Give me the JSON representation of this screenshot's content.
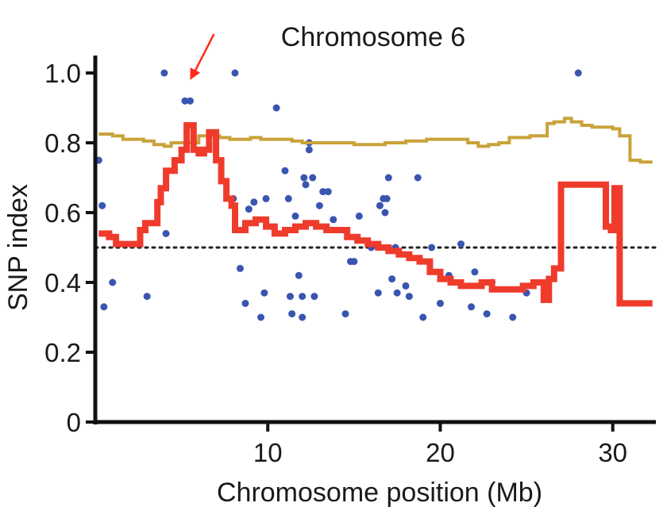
{
  "chart_data": {
    "type": "scatter",
    "title": "Chromosome 6",
    "xlabel": "Chromosome position (Mb)",
    "ylabel": "SNP index",
    "xlim": [
      0,
      32.5
    ],
    "ylim": [
      0,
      1.05
    ],
    "x_ticks": [
      10,
      20,
      30
    ],
    "x_tick_labels": [
      "10",
      "20",
      "30"
    ],
    "y_ticks": [
      0,
      0.2,
      0.4,
      0.6,
      0.8,
      1.0
    ],
    "y_tick_labels": [
      "0",
      "0.2",
      "0.4",
      "0.6",
      "0.8",
      "1.0"
    ],
    "reference_line": {
      "y": 0.5,
      "style": "dotted",
      "color": "#222222"
    },
    "annotation": {
      "type": "arrow",
      "color": "#ff2a1a",
      "points_to": [
        5.5,
        0.98
      ]
    },
    "points": {
      "color": "#3a55b0",
      "x": [
        0.2,
        0.4,
        0.5,
        1.0,
        3.0,
        4.0,
        4.1,
        5.2,
        5.5,
        8.1,
        8.0,
        8.4,
        8.7,
        8.9,
        9.2,
        9.6,
        9.8,
        9.9,
        10.5,
        11.0,
        11.2,
        11.3,
        11.4,
        11.6,
        11.8,
        12.0,
        12.0,
        12.1,
        12.2,
        12.4,
        12.4,
        12.6,
        12.7,
        13.0,
        13.2,
        13.5,
        13.8,
        14.5,
        14.8,
        15.0,
        15.3,
        16.0,
        16.4,
        16.5,
        16.7,
        16.8,
        16.9,
        17.0,
        17.2,
        17.4,
        17.5,
        18.0,
        18.2,
        18.7,
        19.0,
        19.5,
        20.0,
        20.5,
        21.2,
        21.8,
        22.0,
        22.7,
        23.0,
        24.2,
        25.0,
        28.0
      ],
      "y": [
        0.75,
        0.62,
        0.33,
        0.4,
        0.36,
        1.0,
        0.54,
        0.92,
        0.92,
        1.0,
        0.64,
        0.44,
        0.34,
        0.61,
        0.63,
        0.3,
        0.37,
        0.64,
        0.9,
        0.72,
        0.64,
        0.36,
        0.31,
        0.59,
        0.42,
        0.36,
        0.3,
        0.7,
        0.68,
        0.8,
        0.78,
        0.7,
        0.36,
        0.62,
        0.66,
        0.66,
        0.58,
        0.31,
        0.46,
        0.46,
        0.59,
        0.5,
        0.37,
        0.62,
        0.64,
        0.6,
        0.64,
        0.7,
        0.41,
        0.5,
        0.37,
        0.39,
        0.36,
        0.7,
        0.3,
        0.5,
        0.34,
        0.42,
        0.51,
        0.33,
        0.43,
        0.31,
        0.4,
        0.3,
        0.37,
        1.0
      ]
    },
    "series": [
      {
        "color": "#c9a23a",
        "x": [
          0.2,
          1.0,
          1.6,
          2.2,
          2.8,
          3.4,
          4.0,
          4.4,
          5.0,
          5.6,
          6.0,
          6.6,
          7.2,
          7.8,
          8.4,
          9.0,
          9.6,
          10.2,
          10.8,
          11.4,
          12.0,
          12.6,
          13.2,
          13.8,
          14.4,
          15.0,
          15.6,
          16.2,
          16.8,
          17.4,
          18.0,
          18.6,
          19.2,
          19.8,
          20.4,
          21.0,
          21.6,
          22.2,
          22.8,
          23.4,
          24.0,
          24.6,
          25.2,
          25.6,
          26.2,
          26.6,
          27.2,
          27.6,
          28.2,
          28.8,
          29.4,
          29.6,
          30.0,
          30.4,
          31.0,
          31.6,
          32.3
        ],
        "y": [
          0.825,
          0.82,
          0.81,
          0.81,
          0.805,
          0.795,
          0.79,
          0.8,
          0.8,
          0.8,
          0.82,
          0.82,
          0.815,
          0.81,
          0.81,
          0.815,
          0.81,
          0.81,
          0.81,
          0.805,
          0.8,
          0.8,
          0.8,
          0.8,
          0.8,
          0.795,
          0.795,
          0.795,
          0.8,
          0.8,
          0.805,
          0.805,
          0.81,
          0.81,
          0.81,
          0.81,
          0.8,
          0.79,
          0.795,
          0.8,
          0.815,
          0.815,
          0.82,
          0.82,
          0.855,
          0.86,
          0.87,
          0.86,
          0.85,
          0.845,
          0.845,
          0.845,
          0.84,
          0.82,
          0.75,
          0.745,
          0.745
        ]
      },
      {
        "color": "#ef3b2c",
        "x": [
          0.2,
          0.8,
          1.2,
          1.6,
          2.0,
          2.4,
          2.6,
          2.9,
          3.2,
          3.6,
          3.8,
          4.1,
          4.6,
          5.0,
          5.3,
          5.6,
          5.7,
          6.0,
          6.3,
          6.6,
          6.7,
          7.0,
          7.3,
          7.6,
          7.9,
          8.1,
          8.7,
          9.3,
          9.9,
          10.4,
          11.0,
          11.6,
          12.2,
          12.8,
          13.4,
          14.0,
          14.6,
          15.2,
          15.8,
          16.4,
          17.0,
          17.6,
          18.2,
          18.8,
          19.4,
          20.0,
          20.6,
          21.2,
          21.8,
          22.4,
          23.0,
          23.6,
          24.2,
          24.8,
          25.4,
          26.0,
          26.3,
          26.6,
          27.0,
          27.8,
          28.6,
          29.3,
          29.6,
          29.9,
          30.1,
          30.4,
          31.0,
          32.3
        ],
        "y": [
          0.54,
          0.53,
          0.51,
          0.51,
          0.51,
          0.51,
          0.55,
          0.57,
          0.57,
          0.63,
          0.67,
          0.72,
          0.75,
          0.78,
          0.85,
          0.85,
          0.78,
          0.77,
          0.78,
          0.83,
          0.83,
          0.75,
          0.69,
          0.64,
          0.62,
          0.55,
          0.57,
          0.58,
          0.56,
          0.54,
          0.55,
          0.56,
          0.57,
          0.56,
          0.55,
          0.55,
          0.53,
          0.52,
          0.51,
          0.5,
          0.49,
          0.48,
          0.47,
          0.46,
          0.43,
          0.41,
          0.4,
          0.39,
          0.39,
          0.4,
          0.38,
          0.38,
          0.38,
          0.39,
          0.4,
          0.35,
          0.41,
          0.44,
          0.68,
          0.68,
          0.68,
          0.68,
          0.56,
          0.55,
          0.67,
          0.34,
          0.34,
          0.34
        ]
      }
    ]
  }
}
